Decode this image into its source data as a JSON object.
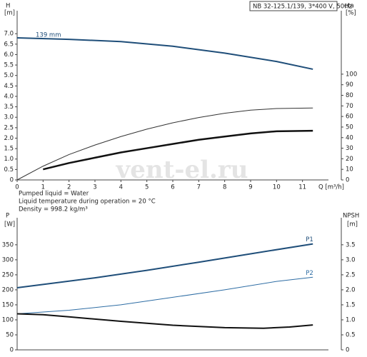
{
  "watermark": "vent-el.ru",
  "header": "NB 32-125.1/139, 3*400 V, 50Hz",
  "notes": [
    "Pumped liquid = Water",
    "Liquid temperature during operation = 20 °C",
    "Density = 998.2 kg/m³"
  ],
  "chart_data": [
    {
      "type": "line",
      "y_label": "H",
      "y_unit": "[m]",
      "y2_label": "eta",
      "y2_unit": "[%]",
      "x_label": "Q [m³/h]",
      "xlim": [
        0,
        12
      ],
      "xticks": [
        0,
        1,
        2,
        3,
        4,
        5,
        6,
        7,
        8,
        9,
        10,
        11
      ],
      "ylim": [
        0,
        8.1
      ],
      "yticks": [
        0,
        0.5,
        {
          "value": 1,
          "label": "1.0"
        },
        1.5,
        {
          "value": 2,
          "label": "2.0"
        },
        2.5,
        {
          "value": 3,
          "label": "3.0"
        },
        3.5,
        {
          "value": 4,
          "label": "4.0"
        },
        4.5,
        {
          "value": 5,
          "label": "5.0"
        },
        5.5,
        {
          "value": 6,
          "label": "6.0"
        },
        6.5,
        {
          "value": 7,
          "label": "7.0"
        }
      ],
      "y2lim": [
        0,
        160
      ],
      "y2ticks": [
        0,
        10,
        20,
        30,
        40,
        50,
        60,
        70,
        80,
        90,
        100
      ],
      "series": [
        {
          "name": "139 mm",
          "color": "#1f4e79",
          "width": 2,
          "x": [
            0,
            2,
            4,
            6,
            8,
            10,
            11.4
          ],
          "values": [
            6.8,
            6.73,
            6.62,
            6.4,
            6.07,
            5.67,
            5.3
          ]
        },
        {
          "color": "#333333",
          "width": 1,
          "axis": "y2",
          "x": [
            0,
            1,
            2,
            3,
            4,
            5,
            6,
            7,
            8,
            9,
            10,
            11.4
          ],
          "values": [
            0,
            13,
            24,
            33,
            41,
            48,
            54,
            59,
            63,
            66,
            67.5,
            68
          ]
        },
        {
          "color": "#111111",
          "width": 2.5,
          "axis": "y2",
          "x": [
            1,
            2,
            3,
            4,
            5,
            6,
            7,
            8,
            9,
            10,
            11.4
          ],
          "values": [
            10,
            16,
            21,
            26,
            30,
            34,
            38,
            41,
            44,
            46,
            46.5
          ]
        }
      ]
    },
    {
      "type": "line",
      "y_label": "P",
      "y_unit": "[W]",
      "y2_label": "NPSH",
      "y2_unit": "[m]",
      "xlim": [
        0,
        12
      ],
      "ylim": [
        0,
        440
      ],
      "yticks": [
        0,
        50,
        100,
        150,
        200,
        250,
        300,
        350
      ],
      "y2lim": [
        0,
        4.4
      ],
      "y2ticks": [
        0,
        0.5,
        {
          "value": 1,
          "label": "1.0"
        },
        1.5,
        {
          "value": 2,
          "label": "2.0"
        },
        2.5,
        {
          "value": 3,
          "label": "3.0"
        },
        3.5
      ],
      "series": [
        {
          "name": "P1",
          "color": "#1f4e79",
          "width": 2,
          "x": [
            0,
            1,
            3,
            5,
            7,
            9,
            11.4
          ],
          "values": [
            207,
            218,
            240,
            265,
            292,
            320,
            353
          ]
        },
        {
          "name": "P2",
          "color": "#2e6da4",
          "width": 1,
          "x": [
            0,
            2,
            4,
            6,
            8,
            10,
            11.4
          ],
          "values": [
            120,
            132,
            150,
            175,
            200,
            228,
            242
          ]
        },
        {
          "color": "#111111",
          "width": 2,
          "axis": "y2",
          "x": [
            0,
            1,
            2,
            4,
            6,
            8,
            9.5,
            10.5,
            11.4
          ],
          "values": [
            1.2,
            1.17,
            1.1,
            0.95,
            0.82,
            0.74,
            0.72,
            0.76,
            0.83
          ]
        }
      ]
    }
  ]
}
